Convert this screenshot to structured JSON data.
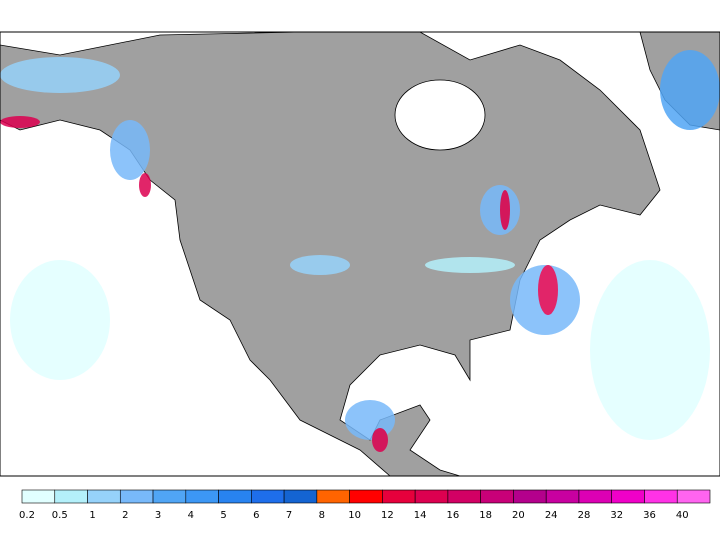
{
  "legend": {
    "labels": [
      "0.2",
      "0.5",
      "1",
      "2",
      "3",
      "4",
      "5",
      "6",
      "7",
      "8",
      "10",
      "12",
      "14",
      "16",
      "18",
      "20",
      "24",
      "28",
      "32",
      "36",
      "40"
    ],
    "colors": [
      "#e1ffff",
      "#b4f0fa",
      "#96d2fa",
      "#78b9fa",
      "#50a5f5",
      "#3c97f5",
      "#2883f0",
      "#1e6eeb",
      "#1464d2",
      "#ff6400",
      "#ff0000",
      "#e6003c",
      "#dc0050",
      "#d20064",
      "#c80078",
      "#b4008c",
      "#c800a0",
      "#dc00b4",
      "#f000c8",
      "#ff32e6",
      "#ff64f0"
    ]
  }
}
